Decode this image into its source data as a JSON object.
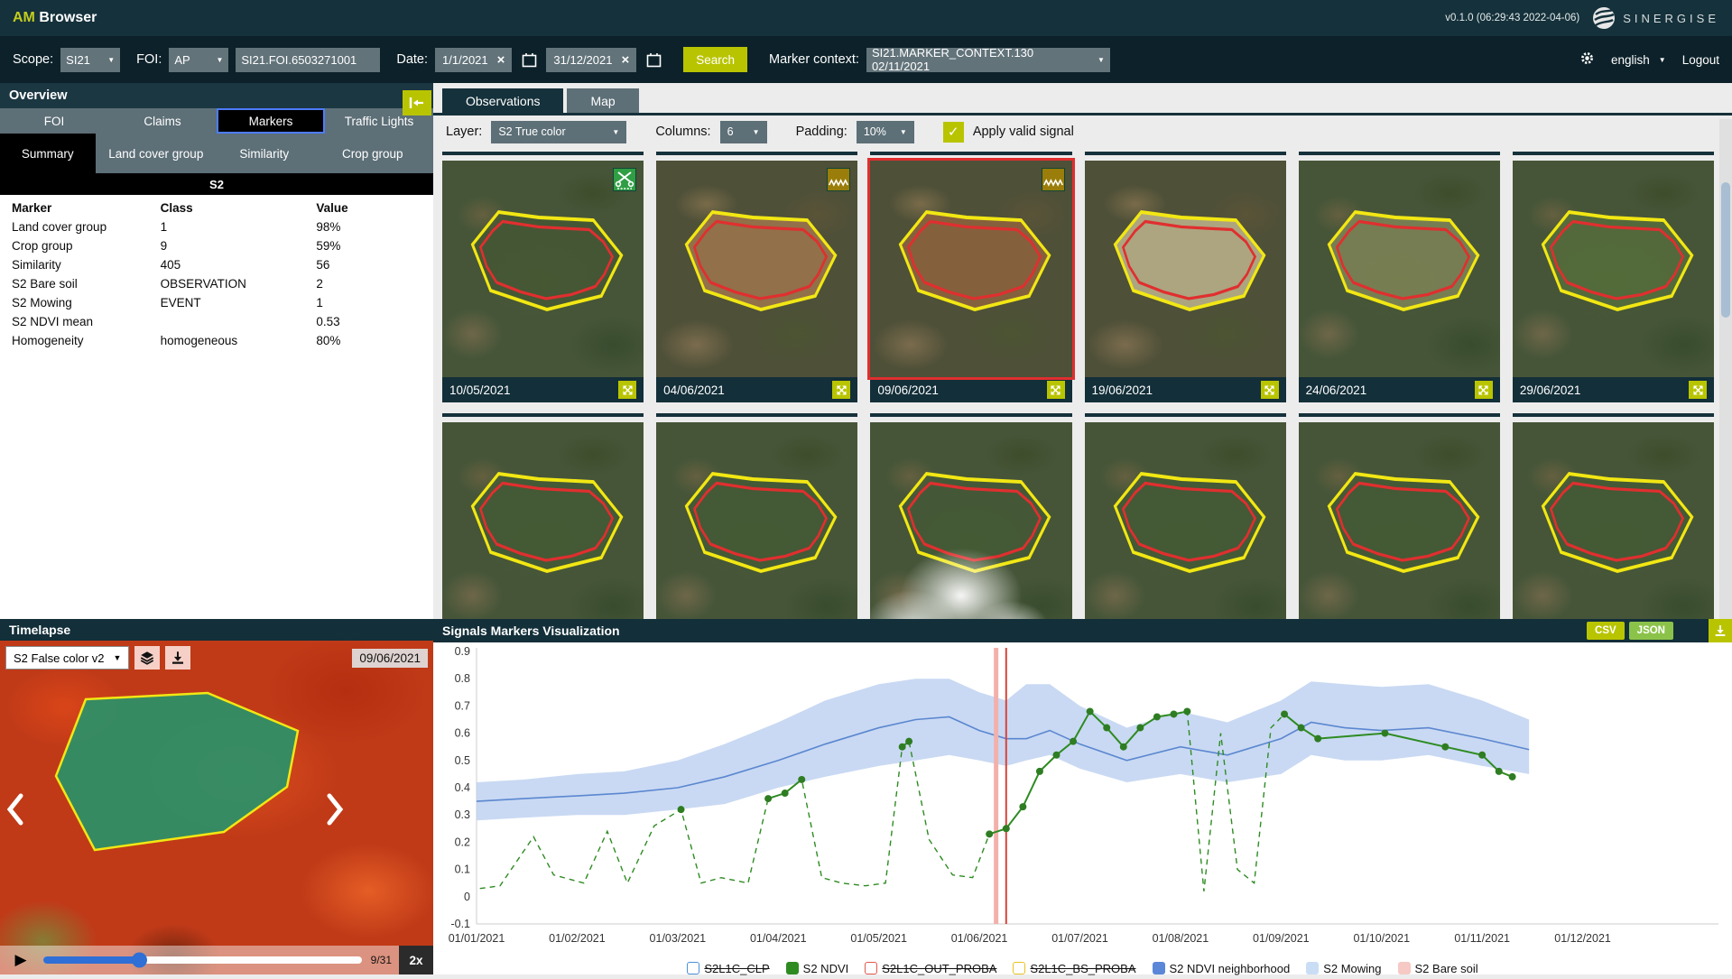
{
  "header": {
    "brand_am": "AM",
    "brand_rest": "Browser",
    "version": "v0.1.0 (06:29:43 2022-04-06)",
    "logo_name": "SINERGISE"
  },
  "toolbar": {
    "scope_label": "Scope:",
    "scope_value": "SI21",
    "foi_label": "FOI:",
    "foi_type_value": "AP",
    "foi_id_value": "SI21.FOI.6503271001",
    "date_label": "Date:",
    "date_from": "1/1/2021",
    "date_to": "31/12/2021",
    "search_label": "Search",
    "marker_context_label": "Marker context:",
    "marker_context_value": "SI21.MARKER_CONTEXT.130 02/11/2021",
    "language_value": "english",
    "logout_label": "Logout"
  },
  "sidebar": {
    "title": "Overview",
    "tabs": [
      {
        "label": "FOI",
        "active": false
      },
      {
        "label": "Claims",
        "active": false
      },
      {
        "label": "Markers",
        "active": true
      },
      {
        "label": "Traffic Lights",
        "active": false
      }
    ],
    "subtabs": [
      {
        "label": "Summary",
        "active": true,
        "w": "22%"
      },
      {
        "label": "Land cover group",
        "active": false,
        "w": "28%"
      },
      {
        "label": "Similarity",
        "active": false,
        "w": "22%"
      },
      {
        "label": "Crop group",
        "active": false,
        "w": "28%"
      }
    ],
    "section_title": "S2",
    "table": {
      "headers": [
        "Marker",
        "Class",
        "Value"
      ],
      "rows": [
        {
          "marker": "Land cover group",
          "class": "1",
          "value": "98%"
        },
        {
          "marker": "Crop group",
          "class": "9",
          "value": "59%"
        },
        {
          "marker": "Similarity",
          "class": "405",
          "value": "56"
        },
        {
          "marker": "S2 Bare soil",
          "class": "OBSERVATION",
          "value": "2"
        },
        {
          "marker": "S2 Mowing",
          "class": "EVENT",
          "value": "1"
        },
        {
          "marker": "S2 NDVI mean",
          "class": "",
          "value": "0.53"
        },
        {
          "marker": "Homogeneity",
          "class": "homogeneous",
          "value": "80%"
        }
      ]
    }
  },
  "observations": {
    "tabs": [
      {
        "label": "Observations",
        "active": true
      },
      {
        "label": "Map",
        "active": false
      }
    ],
    "layer_label": "Layer:",
    "layer_value": "S2 True color",
    "columns_label": "Columns:",
    "columns_value": "6",
    "padding_label": "Padding:",
    "padding_value": "10%",
    "valid_signal_label": "Apply valid signal",
    "valid_signal_checked": true,
    "accent_color": "#b9c400",
    "selected_border_color": "#e02f2f",
    "tiles_row1": [
      {
        "date": "10/05/2021",
        "badge": "mowing-event",
        "badge_color": "#2f9e44",
        "selected": false,
        "fill": "rgba(70,90,48,0.35)",
        "bg": "a",
        "cloudy": false
      },
      {
        "date": "04/06/2021",
        "badge": "bare-soil",
        "badge_color": "#9a7d0a",
        "selected": false,
        "fill": "rgba(158,118,78,0.85)",
        "bg": "b",
        "cloudy": false
      },
      {
        "date": "09/06/2021",
        "badge": "bare-soil",
        "badge_color": "#9a7d0a",
        "selected": true,
        "fill": "rgba(140,98,62,0.9)",
        "bg": "b",
        "cloudy": false
      },
      {
        "date": "19/06/2021",
        "badge": null,
        "badge_color": null,
        "selected": false,
        "fill": "rgba(196,186,146,0.8)",
        "bg": "b",
        "cloudy": false
      },
      {
        "date": "24/06/2021",
        "badge": null,
        "badge_color": null,
        "selected": false,
        "fill": "rgba(150,152,100,0.6)",
        "bg": "a",
        "cloudy": false
      },
      {
        "date": "29/06/2021",
        "badge": null,
        "badge_color": null,
        "selected": false,
        "fill": "rgba(95,125,62,0.5)",
        "bg": "a",
        "cloudy": false
      }
    ],
    "tiles_row2": [
      {
        "date": null,
        "badge": null,
        "selected": false,
        "fill": "rgba(66,96,52,0.4)",
        "bg": "a",
        "cloudy": false
      },
      {
        "date": null,
        "badge": null,
        "selected": false,
        "fill": "rgba(66,96,52,0.4)",
        "bg": "a",
        "cloudy": false
      },
      {
        "date": null,
        "badge": null,
        "selected": false,
        "fill": "rgba(66,96,52,0.3)",
        "bg": "a",
        "cloudy": true
      },
      {
        "date": null,
        "badge": null,
        "selected": false,
        "fill": "rgba(66,96,52,0.4)",
        "bg": "a",
        "cloudy": false
      },
      {
        "date": null,
        "badge": null,
        "selected": false,
        "fill": "rgba(66,96,52,0.4)",
        "bg": "a",
        "cloudy": false
      },
      {
        "date": null,
        "badge": null,
        "selected": false,
        "fill": "rgba(66,96,52,0.4)",
        "bg": "a",
        "cloudy": false
      }
    ]
  },
  "timelapse": {
    "title": "Timelapse",
    "layer_value": "S2 False color v2",
    "date_badge": "09/06/2021",
    "frame_counter": "9/31",
    "speed": "2x",
    "progress_pct": 30
  },
  "signals": {
    "title": "Signals Markers Visualization",
    "csv_label": "CSV",
    "json_label": "JSON"
  },
  "chart_data": {
    "type": "line",
    "title": "Signals Markers Visualization",
    "xlabel": "",
    "ylabel": "",
    "ylim": [
      -0.1,
      0.9
    ],
    "yticks": [
      0.9,
      0.8,
      0.7,
      0.6,
      0.5,
      0.4,
      0.3,
      0.2,
      0.1,
      0,
      -0.1
    ],
    "xticks": [
      "01/01/2021",
      "01/02/2021",
      "01/03/2021",
      "01/04/2021",
      "01/05/2021",
      "01/06/2021",
      "01/07/2021",
      "01/08/2021",
      "01/09/2021",
      "01/10/2021",
      "01/11/2021",
      "01/12/2021"
    ],
    "grid": false,
    "legend_position": "bottom",
    "selection_lines": [
      {
        "month": 6,
        "day": 6,
        "color": "#f3b0ab",
        "width": 5
      },
      {
        "month": 6,
        "day": 9,
        "color": "#d94438",
        "width": 2
      }
    ],
    "series": [
      {
        "name": "S2 NDVI neighborhood",
        "type": "band+line",
        "line_color": "#5b87d0",
        "band_color": "#bccff0",
        "points_mdlmh": [
          [
            1,
            1,
            0.28,
            0.35,
            0.42
          ],
          [
            1,
            15,
            0.29,
            0.36,
            0.43
          ],
          [
            2,
            1,
            0.3,
            0.37,
            0.45
          ],
          [
            2,
            15,
            0.3,
            0.38,
            0.46
          ],
          [
            3,
            1,
            0.32,
            0.4,
            0.5
          ],
          [
            3,
            15,
            0.34,
            0.44,
            0.56
          ],
          [
            4,
            1,
            0.4,
            0.5,
            0.64
          ],
          [
            4,
            15,
            0.44,
            0.56,
            0.72
          ],
          [
            5,
            1,
            0.48,
            0.62,
            0.78
          ],
          [
            5,
            12,
            0.5,
            0.65,
            0.8
          ],
          [
            5,
            22,
            0.52,
            0.66,
            0.8
          ],
          [
            6,
            1,
            0.5,
            0.61,
            0.75
          ],
          [
            6,
            9,
            0.48,
            0.58,
            0.72
          ],
          [
            6,
            15,
            0.5,
            0.58,
            0.78
          ],
          [
            6,
            22,
            0.52,
            0.61,
            0.78
          ],
          [
            7,
            1,
            0.47,
            0.56,
            0.7
          ],
          [
            7,
            15,
            0.42,
            0.5,
            0.62
          ],
          [
            8,
            1,
            0.45,
            0.55,
            0.68
          ],
          [
            8,
            15,
            0.42,
            0.52,
            0.64
          ],
          [
            9,
            1,
            0.45,
            0.58,
            0.72
          ],
          [
            9,
            10,
            0.52,
            0.64,
            0.79
          ],
          [
            9,
            20,
            0.5,
            0.62,
            0.78
          ],
          [
            10,
            1,
            0.5,
            0.61,
            0.77
          ],
          [
            10,
            15,
            0.52,
            0.62,
            0.78
          ],
          [
            11,
            1,
            0.48,
            0.58,
            0.72
          ],
          [
            11,
            15,
            0.45,
            0.54,
            0.65
          ]
        ]
      },
      {
        "name": "S2 NDVI",
        "type": "dashed-line+markers",
        "color": "#2e8b22",
        "points_mdv_obs": [
          [
            1,
            2,
            0.03,
            0
          ],
          [
            1,
            8,
            0.04,
            0
          ],
          [
            1,
            18,
            0.22,
            0
          ],
          [
            1,
            24,
            0.08,
            0
          ],
          [
            2,
            3,
            0.05,
            0
          ],
          [
            2,
            10,
            0.24,
            0
          ],
          [
            2,
            16,
            0.05,
            0
          ],
          [
            2,
            24,
            0.26,
            0
          ],
          [
            3,
            2,
            0.32,
            1
          ],
          [
            3,
            8,
            0.05,
            0
          ],
          [
            3,
            14,
            0.07,
            0
          ],
          [
            3,
            22,
            0.05,
            0
          ],
          [
            3,
            28,
            0.36,
            1
          ],
          [
            4,
            3,
            0.38,
            1
          ],
          [
            4,
            8,
            0.43,
            1
          ],
          [
            4,
            14,
            0.07,
            0
          ],
          [
            4,
            20,
            0.05,
            0
          ],
          [
            4,
            27,
            0.04,
            0
          ],
          [
            5,
            3,
            0.05,
            0
          ],
          [
            5,
            8,
            0.55,
            1
          ],
          [
            5,
            10,
            0.57,
            1
          ],
          [
            5,
            16,
            0.21,
            0
          ],
          [
            5,
            23,
            0.08,
            0
          ],
          [
            5,
            29,
            0.07,
            0
          ],
          [
            6,
            4,
            0.23,
            1
          ],
          [
            6,
            9,
            0.25,
            1
          ],
          [
            6,
            14,
            0.33,
            1
          ],
          [
            6,
            19,
            0.46,
            1
          ],
          [
            6,
            24,
            0.52,
            1
          ],
          [
            6,
            29,
            0.57,
            1
          ],
          [
            7,
            4,
            0.68,
            1
          ],
          [
            7,
            9,
            0.62,
            1
          ],
          [
            7,
            14,
            0.55,
            1
          ],
          [
            7,
            19,
            0.62,
            1
          ],
          [
            7,
            24,
            0.66,
            1
          ],
          [
            7,
            29,
            0.67,
            1
          ],
          [
            8,
            3,
            0.68,
            1
          ],
          [
            8,
            8,
            0.02,
            0
          ],
          [
            8,
            13,
            0.6,
            0
          ],
          [
            8,
            18,
            0.1,
            0
          ],
          [
            8,
            23,
            0.05,
            0
          ],
          [
            8,
            28,
            0.62,
            0
          ],
          [
            9,
            2,
            0.67,
            1
          ],
          [
            9,
            7,
            0.62,
            1
          ],
          [
            9,
            12,
            0.58,
            1
          ],
          [
            10,
            2,
            0.6,
            1
          ],
          [
            10,
            20,
            0.55,
            1
          ],
          [
            11,
            1,
            0.52,
            1
          ],
          [
            11,
            6,
            0.46,
            1
          ],
          [
            11,
            10,
            0.44,
            1
          ]
        ]
      }
    ],
    "legend": [
      {
        "label": "S2L1C_CLP",
        "color": "#4a90d9",
        "filled": false,
        "strike": true
      },
      {
        "label": "S2 NDVI",
        "color": "#2e8b22",
        "filled": true,
        "strike": false
      },
      {
        "label": "S2L1C_OUT_PROBA",
        "color": "#e2574c",
        "filled": false,
        "strike": true
      },
      {
        "label": "S2L1C_BS_PROBA",
        "color": "#e8c223",
        "filled": false,
        "strike": true
      },
      {
        "label": "S2 NDVI neighborhood",
        "color": "#5b87d9",
        "filled": true,
        "strike": false
      },
      {
        "label": "S2 Mowing",
        "color": "#c9ddf5",
        "filled": true,
        "strike": false
      },
      {
        "label": "S2 Bare soil",
        "color": "#f6c9c4",
        "filled": true,
        "strike": false
      }
    ]
  }
}
